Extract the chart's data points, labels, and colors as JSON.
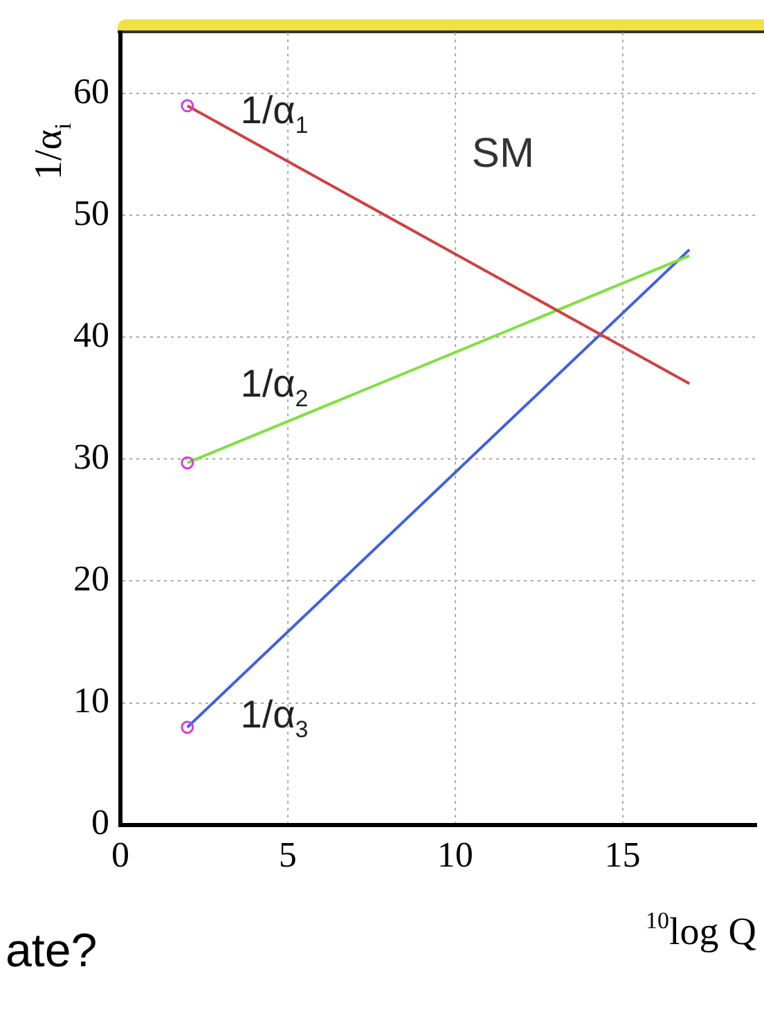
{
  "chart_data": {
    "type": "line",
    "xlabel": "$^{10}$log Q",
    "ylabel": "1/α$_{i}$",
    "x": [
      2,
      17
    ],
    "series": [
      {
        "name": "1/α$_{1}$",
        "color": "#d04040",
        "values": [
          59,
          36.2
        ]
      },
      {
        "name": "1/α$_{2}$",
        "color": "#80e040",
        "values": [
          29.7,
          46.7
        ]
      },
      {
        "name": "1/α$_{3}$",
        "color": "#4060e0",
        "values": [
          8,
          47.2
        ]
      }
    ],
    "xlim": [
      0,
      19
    ],
    "xticks": [
      0,
      5,
      10,
      15
    ],
    "ylim": [
      0,
      65
    ],
    "yticks": [
      0,
      10,
      20,
      30,
      40,
      50,
      60
    ],
    "grid": true,
    "legend": false,
    "marker": "circle",
    "line_style": "solid",
    "annotations": [
      "SM",
      "ate?"
    ]
  }
}
